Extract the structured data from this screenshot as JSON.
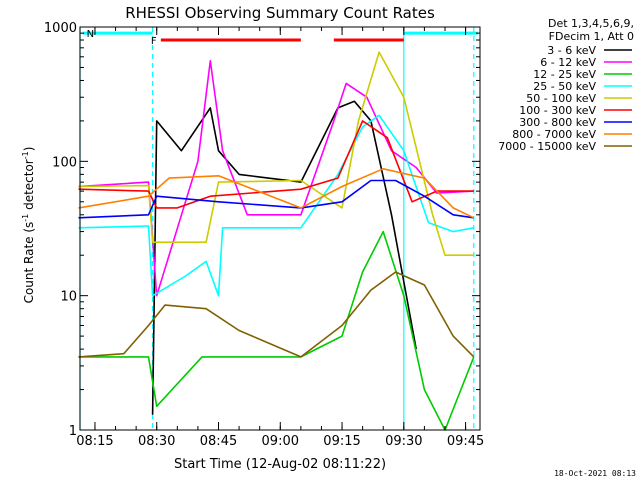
{
  "chart_data": {
    "type": "line",
    "title": "RHESSI Observing Summary Count Rates",
    "xlabel": "Start Time (12-Aug-02 08:11:22)",
    "ylabel_main": "Count Rate (s",
    "ylabel_sup1": "-1",
    "ylabel_mid": " detector",
    "ylabel_sup2": "-1",
    "ylabel_end": ")",
    "yscale": "log",
    "ylim": [
      1,
      1000
    ],
    "xlim": [
      "08:11:22",
      "09:48:30"
    ],
    "x_ticks": [
      "08:15",
      "08:30",
      "08:45",
      "09:00",
      "09:15",
      "09:30",
      "09:45"
    ],
    "y_ticks": [
      "1",
      "10",
      "100",
      "1000"
    ],
    "legend": {
      "placement": "right",
      "header": [
        "Det 1,3,4,5,6,9,",
        "FDecim 1, Att 0"
      ]
    },
    "series": [
      {
        "name": "3 - 6 keV",
        "color": "#000000",
        "points": [
          [
            "08:29",
            1.3
          ],
          [
            "08:30",
            200
          ],
          [
            "08:36",
            120
          ],
          [
            "08:43",
            250
          ],
          [
            "08:45",
            120
          ],
          [
            "08:50",
            80
          ],
          [
            "09:05",
            70
          ],
          [
            "09:14",
            250
          ],
          [
            "09:18",
            280
          ],
          [
            "09:22",
            200
          ],
          [
            "09:27",
            40
          ],
          [
            "09:33",
            4
          ]
        ]
      },
      {
        "name": "6 - 12 keV",
        "color": "#ff00ff",
        "points": [
          [
            "08:11",
            65
          ],
          [
            "08:28",
            70
          ],
          [
            "08:30",
            10
          ],
          [
            "08:40",
            100
          ],
          [
            "08:43",
            560
          ],
          [
            "08:46",
            120
          ],
          [
            "08:52",
            40
          ],
          [
            "09:05",
            40
          ],
          [
            "09:13",
            200
          ],
          [
            "09:16",
            380
          ],
          [
            "09:21",
            300
          ],
          [
            "09:27",
            120
          ],
          [
            "09:33",
            90
          ],
          [
            "09:38",
            58
          ],
          [
            "09:47",
            60
          ]
        ]
      },
      {
        "name": "12 - 25 keV",
        "color": "#00cc00",
        "points": [
          [
            "08:11",
            3.5
          ],
          [
            "08:28",
            3.5
          ],
          [
            "08:30",
            1.5
          ],
          [
            "08:41",
            3.5
          ],
          [
            "09:05",
            3.5
          ],
          [
            "09:15",
            5
          ],
          [
            "09:20",
            15
          ],
          [
            "09:25",
            30
          ],
          [
            "09:30",
            10
          ],
          [
            "09:35",
            2
          ],
          [
            "09:40",
            1
          ],
          [
            "09:47",
            3.5
          ]
        ]
      },
      {
        "name": "25 - 50 keV",
        "color": "#00ffff",
        "points": [
          [
            "08:11",
            32
          ],
          [
            "08:28",
            33
          ],
          [
            "08:29",
            10
          ],
          [
            "08:37",
            14
          ],
          [
            "08:42",
            18
          ],
          [
            "08:45",
            10
          ],
          [
            "08:46",
            32
          ],
          [
            "09:05",
            32
          ],
          [
            "09:14",
            80
          ],
          [
            "09:20",
            180
          ],
          [
            "09:24",
            220
          ],
          [
            "09:30",
            120
          ],
          [
            "09:36",
            35
          ],
          [
            "09:42",
            30
          ],
          [
            "09:47",
            32
          ]
        ]
      },
      {
        "name": "50 - 100 keV",
        "color": "#cccc00",
        "points": [
          [
            "08:11",
            65
          ],
          [
            "08:28",
            66
          ],
          [
            "08:29",
            25
          ],
          [
            "08:42",
            25
          ],
          [
            "08:45",
            70
          ],
          [
            "09:05",
            72
          ],
          [
            "09:15",
            45
          ],
          [
            "09:19",
            200
          ],
          [
            "09:24",
            650
          ],
          [
            "09:30",
            300
          ],
          [
            "09:37",
            40
          ],
          [
            "09:40",
            20
          ],
          [
            "09:47",
            20
          ]
        ]
      },
      {
        "name": "100 - 300 keV",
        "color": "#ff0000",
        "points": [
          [
            "08:11",
            62
          ],
          [
            "08:28",
            60
          ],
          [
            "08:30",
            45
          ],
          [
            "08:35",
            45
          ],
          [
            "08:43",
            55
          ],
          [
            "09:05",
            62
          ],
          [
            "09:14",
            75
          ],
          [
            "09:20",
            200
          ],
          [
            "09:26",
            150
          ],
          [
            "09:32",
            50
          ],
          [
            "09:38",
            60
          ],
          [
            "09:47",
            60
          ]
        ]
      },
      {
        "name": "300 - 800 keV",
        "color": "#0000ff",
        "points": [
          [
            "08:11",
            38
          ],
          [
            "08:28",
            40
          ],
          [
            "08:30",
            55
          ],
          [
            "08:45",
            50
          ],
          [
            "09:05",
            45
          ],
          [
            "09:15",
            50
          ],
          [
            "09:22",
            72
          ],
          [
            "09:28",
            72
          ],
          [
            "09:35",
            55
          ],
          [
            "09:42",
            40
          ],
          [
            "09:47",
            38
          ]
        ]
      },
      {
        "name": "800 - 7000 keV",
        "color": "#ff8000",
        "points": [
          [
            "08:11",
            45
          ],
          [
            "08:28",
            55
          ],
          [
            "08:33",
            75
          ],
          [
            "08:45",
            78
          ],
          [
            "09:05",
            45
          ],
          [
            "09:15",
            65
          ],
          [
            "09:25",
            88
          ],
          [
            "09:35",
            75
          ],
          [
            "09:42",
            45
          ],
          [
            "09:47",
            38
          ]
        ]
      },
      {
        "name": "7000 - 15000 keV",
        "color": "#806000",
        "points": [
          [
            "08:11",
            3.5
          ],
          [
            "08:22",
            3.7
          ],
          [
            "08:28",
            6
          ],
          [
            "08:32",
            8.5
          ],
          [
            "08:42",
            8
          ],
          [
            "08:50",
            5.5
          ],
          [
            "09:05",
            3.5
          ],
          [
            "09:15",
            6
          ],
          [
            "09:22",
            11
          ],
          [
            "09:28",
            15
          ],
          [
            "09:35",
            12
          ],
          [
            "09:42",
            5
          ],
          [
            "09:47",
            3.5
          ]
        ]
      }
    ],
    "flags": [
      {
        "label": "F",
        "color": "#ff0000",
        "segments": [
          [
            "08:31",
            "09:05"
          ],
          [
            "09:13",
            "09:30"
          ]
        ],
        "y": 800
      },
      {
        "label": "N",
        "color": "#00ffff",
        "segments": [
          [
            "08:12",
            "08:29"
          ],
          [
            "09:30",
            "09:48"
          ]
        ],
        "y": 900
      }
    ],
    "vertical_markers": [
      {
        "time": "08:11:22",
        "style": "solid",
        "color": "#00ffff"
      },
      {
        "time": "08:29",
        "style": "dashed",
        "color": "#00ffff"
      },
      {
        "time": "09:30",
        "style": "solid",
        "color": "#00ffff"
      },
      {
        "time": "09:47",
        "style": "dashed",
        "color": "#00ffff"
      }
    ],
    "footer_date": "18-Oct-2021 08:13"
  }
}
